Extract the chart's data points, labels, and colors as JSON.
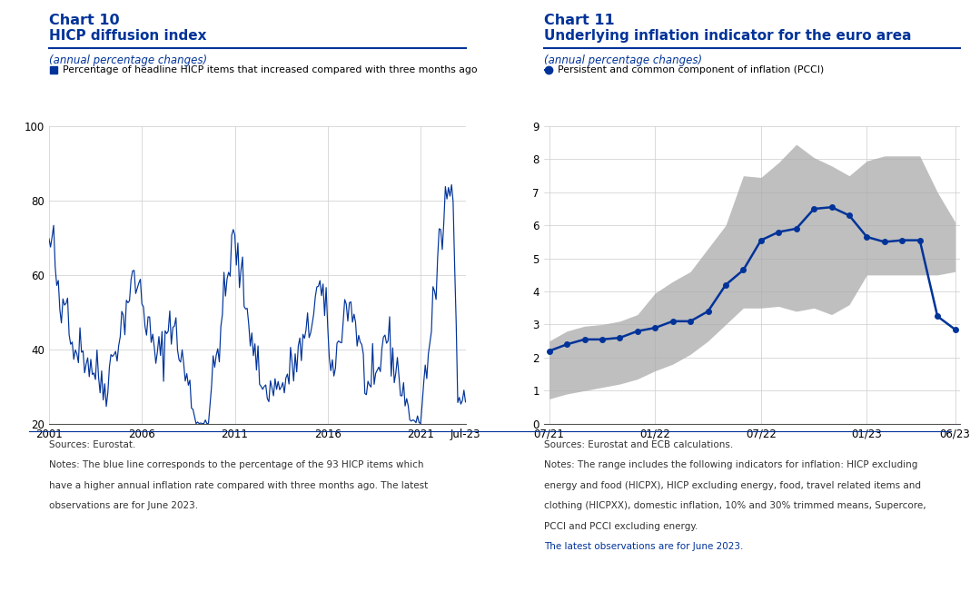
{
  "chart10_title": "Chart 10",
  "chart10_subtitle": "HICP diffusion index",
  "chart10_ylabel": "(annual percentage changes)",
  "chart10_legend": "Percentage of headline HICP items that increased compared with three months ago",
  "chart10_ylim": [
    20,
    100
  ],
  "chart10_yticks": [
    20,
    40,
    60,
    80,
    100
  ],
  "chart10_xtick_labels": [
    "2001",
    "2006",
    "2011",
    "2016",
    "2021",
    "Jul-23"
  ],
  "chart10_xtick_pos": [
    0,
    60,
    120,
    180,
    240,
    269
  ],
  "chart10_xlim": [
    0,
    269
  ],
  "chart10_notes_line1": "Sources: Eurostat.",
  "chart10_notes_line2": "Notes: The blue line corresponds to the percentage of the 93 HICP items which",
  "chart10_notes_line3": "have a higher annual inflation rate compared with three months ago. The latest",
  "chart10_notes_line4": "observations are for June 2023.",
  "chart11_title": "Chart 11",
  "chart11_subtitle": "Underlying inflation indicator for the euro area",
  "chart11_ylabel": "(annual percentage changes)",
  "chart11_legend": "Persistent and common component of inflation (PCCI)",
  "chart11_ylim": [
    0,
    9
  ],
  "chart11_yticks": [
    0,
    1,
    2,
    3,
    4,
    5,
    6,
    7,
    8,
    9
  ],
  "chart11_xtick_labels": [
    "07/21",
    "01/22",
    "07/22",
    "01/23",
    "06/23"
  ],
  "chart11_xtick_pos": [
    0,
    6,
    12,
    18,
    23
  ],
  "chart11_xlim": [
    -0.3,
    23.3
  ],
  "chart11_notes_line1": "Sources: Eurostat and ECB calculations.",
  "chart11_notes_line2": "Notes: The range includes the following indicators for inflation: HICP excluding",
  "chart11_notes_line3": "energy and food (HICPX), HICP excluding energy, food, travel related items and",
  "chart11_notes_line4": "clothing (HICPXX), domestic inflation, 10% and 30% trimmed means, Supercore,",
  "chart11_notes_line5": "PCCI and PCCI excluding energy.",
  "chart11_notes_line6": "The latest observations are for June 2023.",
  "line_color": "#003399",
  "shade_color": "#aaaaaa",
  "bg_color": "#ffffff",
  "text_color": "#333333",
  "blue_text_color": "#003399",
  "pcci_y": [
    2.2,
    2.4,
    2.55,
    2.55,
    2.6,
    2.8,
    2.9,
    3.1,
    3.1,
    3.4,
    4.2,
    4.65,
    5.55,
    5.8,
    5.9,
    6.5,
    6.55,
    6.3,
    5.65,
    5.5,
    5.55,
    5.55,
    3.25,
    2.85
  ],
  "band_lower": [
    0.75,
    0.9,
    1.0,
    1.1,
    1.2,
    1.35,
    1.6,
    1.8,
    2.1,
    2.5,
    3.0,
    3.5,
    3.5,
    3.55,
    3.4,
    3.5,
    3.3,
    3.6,
    4.5,
    4.5,
    4.5,
    4.5,
    4.5,
    4.6
  ],
  "band_upper": [
    2.5,
    2.8,
    2.95,
    3.0,
    3.1,
    3.3,
    3.95,
    4.3,
    4.6,
    5.3,
    6.0,
    7.5,
    7.45,
    7.9,
    8.45,
    8.05,
    7.8,
    7.5,
    7.95,
    8.1,
    8.1,
    8.1,
    7.0,
    6.1
  ]
}
